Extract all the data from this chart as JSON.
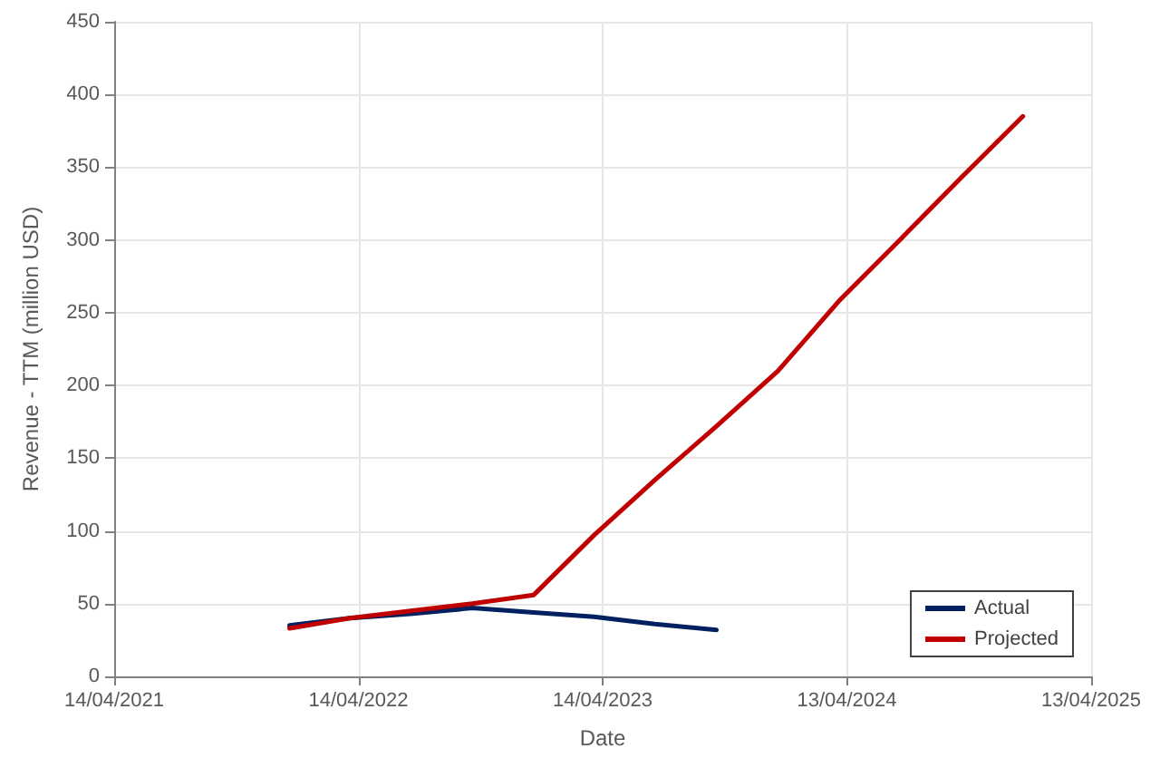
{
  "chart_data": {
    "type": "line",
    "xlabel": "Date",
    "ylabel": "Revenue - TTM (million USD)",
    "xlim": [
      "2021-04-14",
      "2025-04-13"
    ],
    "xticks": [
      {
        "value": "2021-04-14",
        "label": "14/04/2021"
      },
      {
        "value": "2022-04-14",
        "label": "14/04/2022"
      },
      {
        "value": "2023-04-14",
        "label": "14/04/2023"
      },
      {
        "value": "2024-04-13",
        "label": "13/04/2024"
      },
      {
        "value": "2025-04-13",
        "label": "13/04/2025"
      }
    ],
    "ylim": [
      0,
      450
    ],
    "yticks": [
      0,
      50,
      100,
      150,
      200,
      250,
      300,
      350,
      400,
      450
    ],
    "grid": true,
    "legend": "bottom right",
    "marker": "none",
    "line_style": "solid",
    "series": [
      {
        "name": "Actual",
        "color": "#002060",
        "x": [
          "2022-01-01",
          "2022-04-01",
          "2022-07-01",
          "2022-10-01",
          "2023-01-01",
          "2023-04-01",
          "2023-07-01",
          "2023-10-01"
        ],
        "values": [
          35,
          40,
          43,
          47,
          44,
          41,
          36,
          32
        ]
      },
      {
        "name": "Projected",
        "color": "#c00000",
        "x": [
          "2022-01-01",
          "2022-04-01",
          "2022-07-01",
          "2022-10-01",
          "2023-01-01",
          "2023-04-01",
          "2023-07-01",
          "2023-10-01",
          "2024-01-01",
          "2024-04-01",
          "2024-07-01",
          "2024-10-01",
          "2025-01-01"
        ],
        "values": [
          33,
          40,
          45,
          50,
          56,
          97,
          135,
          172,
          210,
          258,
          300,
          343,
          385
        ]
      }
    ]
  }
}
